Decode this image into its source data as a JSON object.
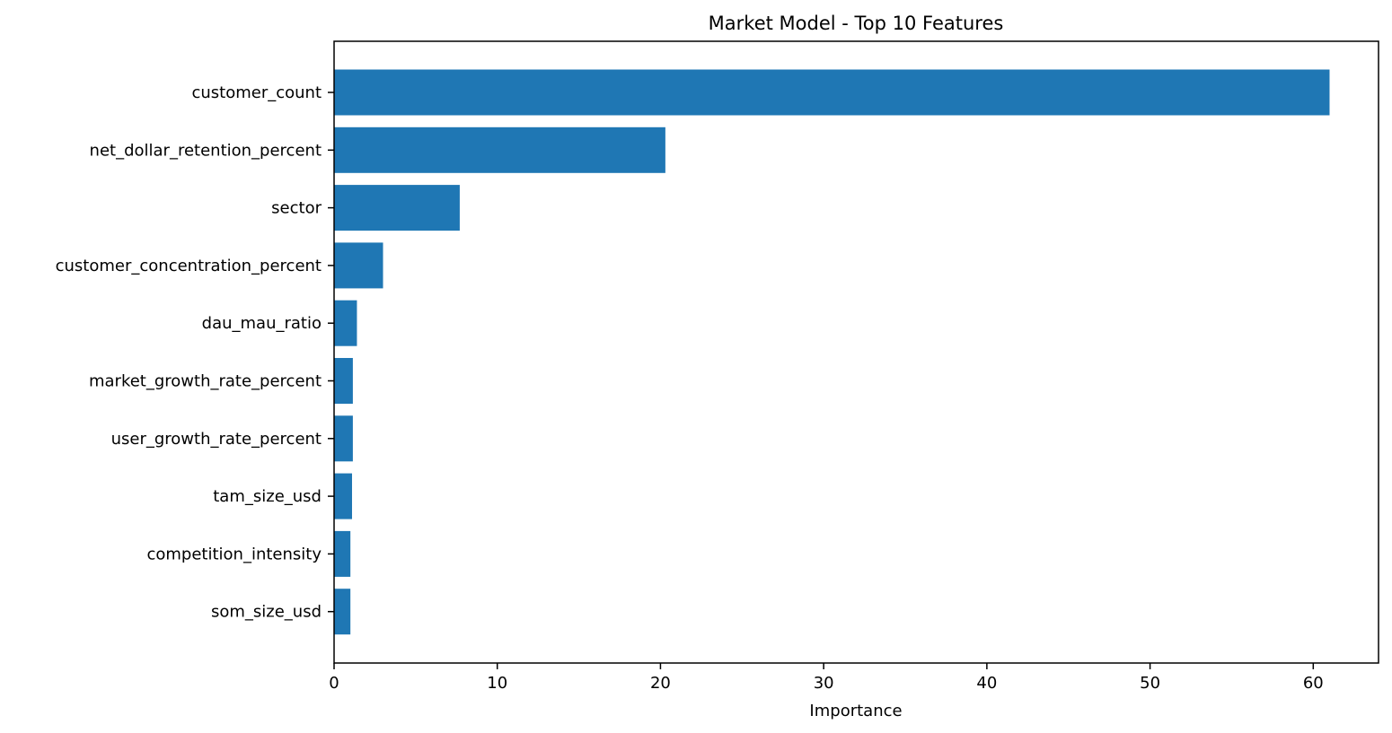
{
  "chart_data": {
    "type": "bar",
    "orientation": "horizontal",
    "title": "Market Model - Top 10 Features",
    "xlabel": "Importance",
    "ylabel": "",
    "categories": [
      "customer_count",
      "net_dollar_retention_percent",
      "sector",
      "customer_concentration_percent",
      "dau_mau_ratio",
      "market_growth_rate_percent",
      "user_growth_rate_percent",
      "tam_size_usd",
      "competition_intensity",
      "som_size_usd"
    ],
    "values": [
      61.0,
      20.3,
      7.7,
      3.0,
      1.4,
      1.15,
      1.15,
      1.1,
      1.0,
      1.0
    ],
    "xlim": [
      0,
      64
    ],
    "xticks": [
      0,
      10,
      20,
      30,
      40,
      50,
      60
    ],
    "grid": false,
    "legend": "none",
    "bar_color": "#1f77b4"
  }
}
